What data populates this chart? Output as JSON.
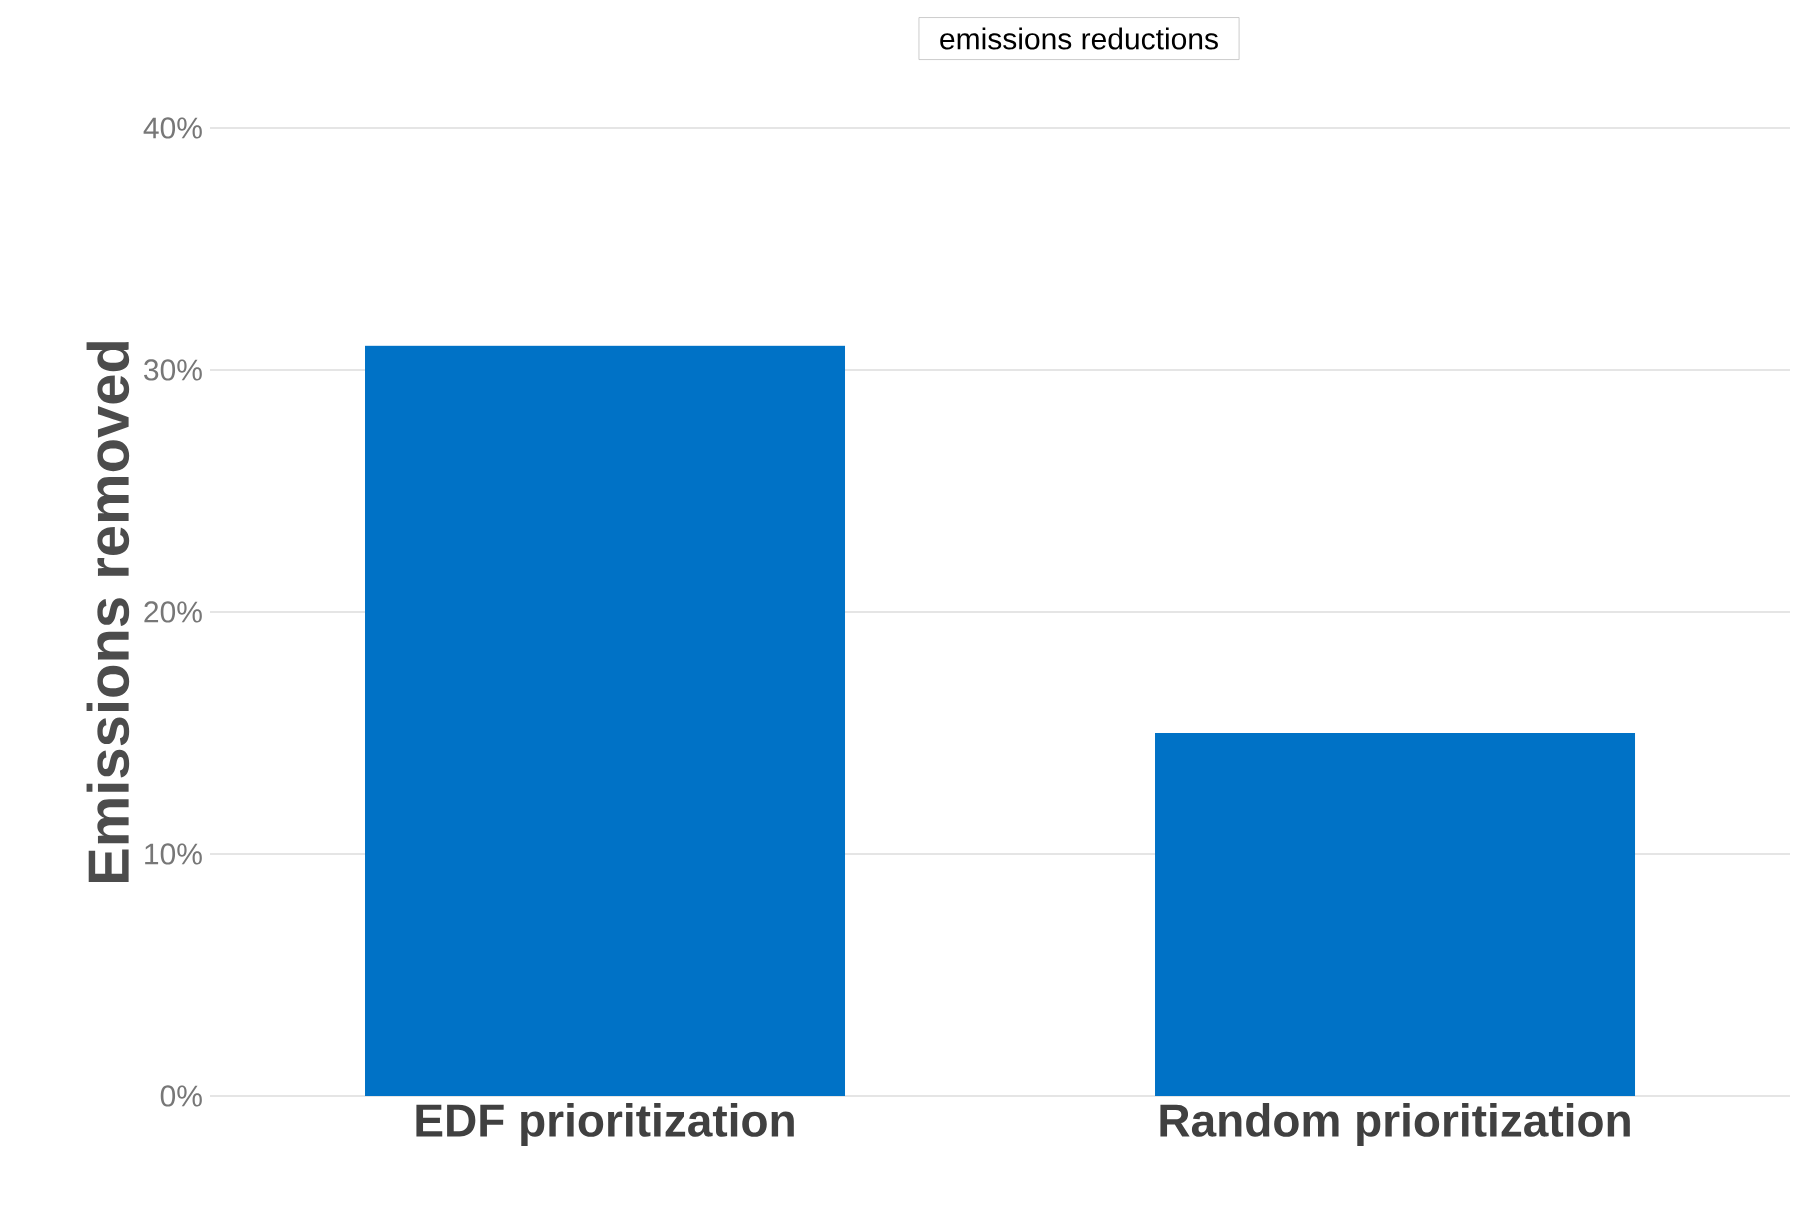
{
  "chart_data": {
    "type": "bar",
    "title": "emissions reductions",
    "ylabel": "Emissions removed",
    "categories": [
      "EDF prioritization",
      "Random prioritization"
    ],
    "values": [
      31,
      15
    ],
    "color": "#0072c6",
    "ylim": [
      0,
      40
    ],
    "yticks": [
      {
        "value": 0,
        "label": "0%"
      },
      {
        "value": 10,
        "label": "10%"
      },
      {
        "value": 20,
        "label": "20%"
      },
      {
        "value": 30,
        "label": "30%"
      },
      {
        "value": 40,
        "label": "40%"
      }
    ],
    "grid": "y"
  }
}
